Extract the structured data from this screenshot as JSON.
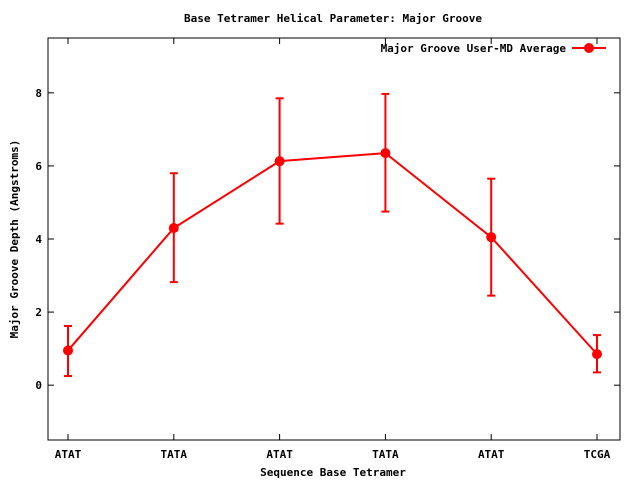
{
  "chart_data": {
    "type": "line",
    "title": "Base Tetramer Helical Parameter: Major Groove",
    "xlabel": "Sequence Base Tetramer",
    "ylabel": "Major Groove Depth (Angstroms)",
    "categories": [
      "ATAT",
      "TATA",
      "ATAT",
      "TATA",
      "ATAT",
      "TCGA"
    ],
    "ylim": [
      -1.5,
      9.5
    ],
    "yticks": [
      0,
      2,
      4,
      6,
      8
    ],
    "grid": false,
    "legend": "top-right",
    "series": [
      {
        "name": "Major Groove User-MD Average",
        "color": "#ff0000",
        "values": [
          0.95,
          4.3,
          6.13,
          6.35,
          4.05,
          0.85
        ],
        "error_low": [
          0.25,
          2.82,
          4.42,
          4.75,
          2.45,
          0.35
        ],
        "error_high": [
          1.62,
          5.8,
          7.85,
          7.97,
          5.65,
          1.37
        ]
      }
    ]
  }
}
